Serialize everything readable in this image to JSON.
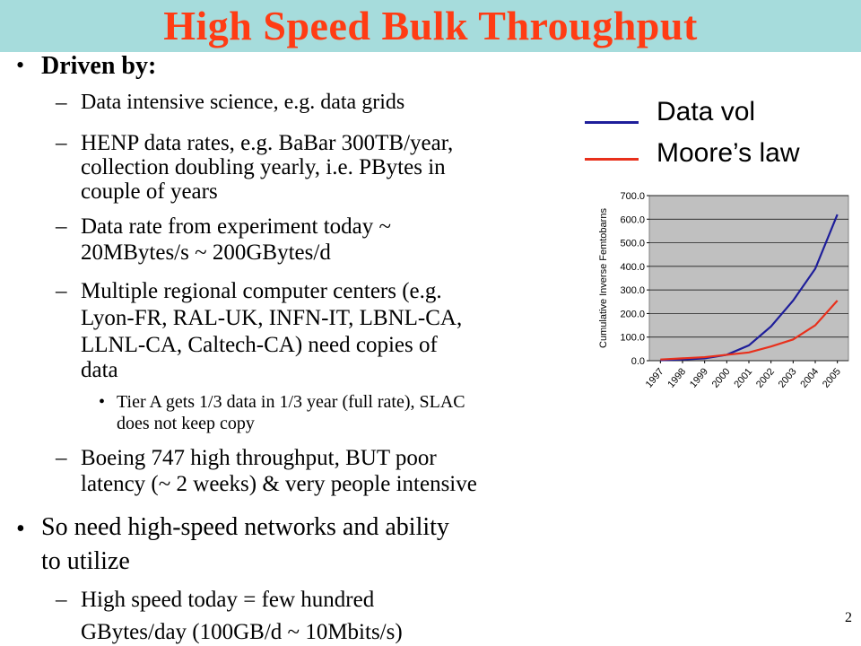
{
  "slide": {
    "title": "High Speed Bulk Throughput",
    "page_number": "2",
    "bullet_driven": "Driven by:",
    "sub1": "Data intensive science, e.g. data grids",
    "sub2_l1": "HENP data rates, e.g. BaBar 300TB/year,",
    "sub2_l2": "collection doubling yearly, i.e. PBytes in",
    "sub2_l3": "couple of years",
    "sub3_l1": "Data rate from experiment today ~",
    "sub3_l2": "20MBytes/s ~ 200GBytes/d",
    "sub4_l1": "Multiple regional computer centers (e.g.",
    "sub4_l2": "Lyon-FR, RAL-UK, INFN-IT, LBNL-CA,",
    "sub4_l3": "LLNL-CA, Caltech-CA) need copies of",
    "sub4_l4": "data",
    "subsub_l1": "Tier A gets 1/3 data in 1/3 year (full rate), SLAC",
    "subsub_l2": "does not keep copy",
    "sub5_l1": "Boeing 747  high throughput, BUT poor",
    "sub5_l2": "latency (~ 2 weeks) & very people intensive",
    "bullet2_l1": "So need high-speed networks and ability",
    "bullet2_l2": "to utilize",
    "sub6_l1": "High speed today = few hundred",
    "sub6_l2": "GBytes/day (100GB/d ~ 10Mbits/s)"
  },
  "legend": {
    "items": [
      {
        "label": "Data vol",
        "color": "#1e1e9a"
      },
      {
        "label": "Moore’s law",
        "color": "#e8301c"
      }
    ]
  },
  "colors": {
    "title_bar": "#a6dcdc",
    "title_text": "#ff3c14",
    "plot_bg": "#c0c0c0"
  },
  "chart_data": {
    "type": "line",
    "title": "",
    "xlabel": "",
    "ylabel": "Cumulative Inverse Femtobarns",
    "categories": [
      "1997",
      "1998",
      "1999",
      "2000",
      "2001",
      "2002",
      "2003",
      "2004",
      "2005"
    ],
    "ylim": [
      0,
      700
    ],
    "yticks": [
      "0.0",
      "100.0",
      "200.0",
      "300.0",
      "400.0",
      "500.0",
      "600.0",
      "700.0"
    ],
    "grid": true,
    "series": [
      {
        "name": "Data vol",
        "color": "#1e1e9a",
        "values": [
          2,
          5,
          10,
          25,
          65,
          145,
          255,
          390,
          620
        ]
      },
      {
        "name": "Moore’s law",
        "color": "#e8301c",
        "values": [
          5,
          10,
          15,
          25,
          35,
          60,
          90,
          150,
          255
        ]
      }
    ]
  }
}
